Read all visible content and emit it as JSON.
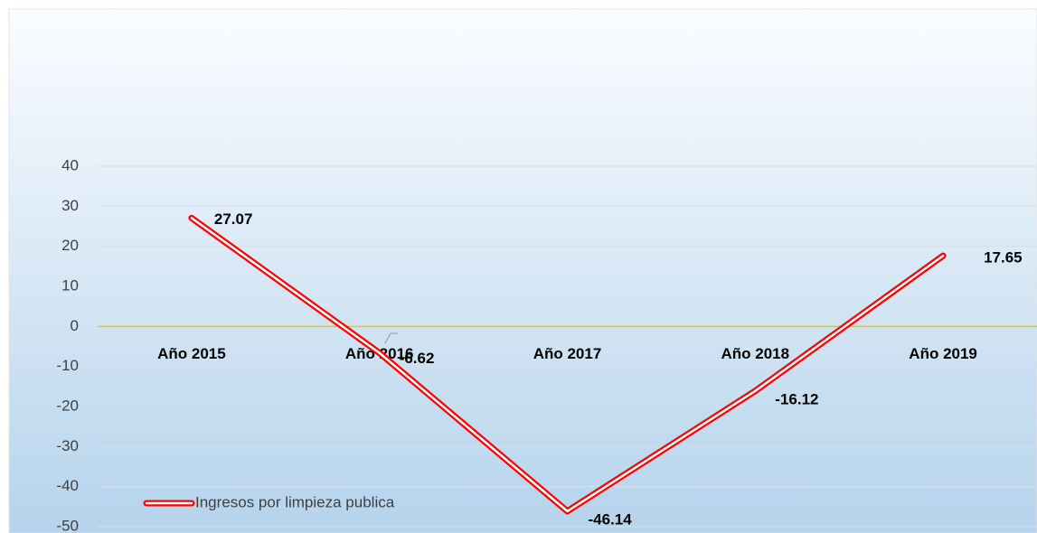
{
  "chart_data": {
    "type": "line",
    "categories": [
      "Año 2015",
      "Año 2016",
      "Año 2017",
      "Año 2018",
      "Año 2019"
    ],
    "series": [
      {
        "name": "Ingresos por limpieza publica",
        "color": "#ff0000",
        "values": [
          27.07,
          -6.62,
          -46.14,
          -16.12,
          17.65
        ]
      }
    ],
    "ylim": [
      -50,
      40
    ],
    "yticks": [
      -50,
      -40,
      -30,
      -20,
      -10,
      0,
      10,
      20,
      30,
      40
    ],
    "grid": true,
    "legend": "bottom-left"
  }
}
